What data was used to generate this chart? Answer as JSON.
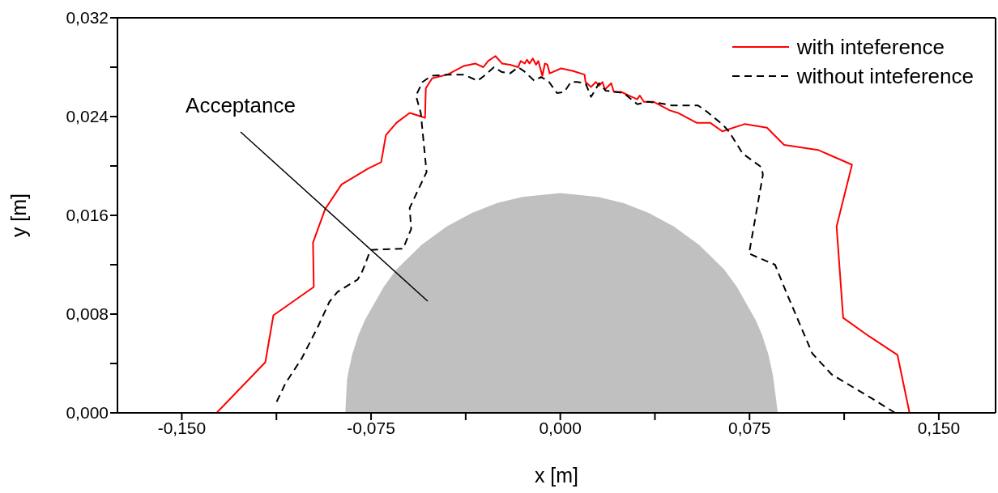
{
  "chart_data": {
    "type": "line",
    "xlabel": "x [m]",
    "ylabel": "y [m]",
    "xlim": [
      -0.1755,
      0.1725
    ],
    "ylim": [
      0,
      0.032
    ],
    "xticks": [
      {
        "value": -0.15,
        "label": "-0,150"
      },
      {
        "value": -0.1125,
        "label": null
      },
      {
        "value": -0.075,
        "label": "-0,075"
      },
      {
        "value": -0.0375,
        "label": null
      },
      {
        "value": 0,
        "label": "0,000"
      },
      {
        "value": 0.0375,
        "label": null
      },
      {
        "value": 0.075,
        "label": "0,075"
      },
      {
        "value": 0.1125,
        "label": null
      },
      {
        "value": 0.15,
        "label": "0,150"
      }
    ],
    "yticks": [
      {
        "value": 0,
        "label": "0,000"
      },
      {
        "value": 0.004,
        "label": null
      },
      {
        "value": 0.008,
        "label": "0,008"
      },
      {
        "value": 0.012,
        "label": null
      },
      {
        "value": 0.016,
        "label": "0,016"
      },
      {
        "value": 0.02,
        "label": null
      },
      {
        "value": 0.024,
        "label": "0,024"
      },
      {
        "value": 0.028,
        "label": null
      },
      {
        "value": 0.032,
        "label": "0,032"
      }
    ],
    "legend": "top right",
    "annotations": [
      "Acceptance"
    ],
    "series": [
      {
        "type": "area",
        "color": "#c0c0c0",
        "x": [
          -0.0852,
          -0.0845,
          -0.084,
          -0.0825,
          -0.08,
          -0.0775,
          -0.07,
          -0.065,
          -0.055,
          -0.045,
          -0.035,
          -0.025,
          -0.015,
          0,
          0.015,
          0.025,
          0.035,
          0.045,
          0.055,
          0.065,
          0.07,
          0.0775,
          0.08,
          0.0825,
          0.084,
          0.0845,
          0.0862
        ],
        "values": [
          0,
          0.0027,
          0.0033,
          0.0047,
          0.0063,
          0.0075,
          0.0102,
          0.0116,
          0.0136,
          0.0151,
          0.0162,
          0.017,
          0.0175,
          0.0178,
          0.0175,
          0.017,
          0.0162,
          0.0151,
          0.0136,
          0.0116,
          0.0102,
          0.0075,
          0.0063,
          0.0047,
          0.0033,
          0.0027,
          0
        ]
      },
      {
        "name": "with inteference",
        "color": "#ff0000",
        "line_style": "solid",
        "x": [
          -0.1362,
          -0.1169,
          -0.1137,
          -0.0977,
          -0.098,
          -0.0932,
          -0.0867,
          -0.0761,
          -0.071,
          -0.0691,
          -0.0649,
          -0.0597,
          -0.0536,
          -0.0533,
          -0.0508,
          -0.0447,
          -0.0382,
          -0.0337,
          -0.0305,
          -0.0286,
          -0.0257,
          -0.0231,
          -0.0199,
          -0.0167,
          -0.0157,
          -0.0141,
          -0.0132,
          -0.0122,
          -0.0109,
          -0.0096,
          -0.0087,
          -0.0071,
          -0.0061,
          -0.0051,
          -0.0042,
          0.0003,
          0.0048,
          0.0096,
          0.01,
          0.0122,
          0.0141,
          0.0154,
          0.0167,
          0.0177,
          0.0202,
          0.0212,
          0.0241,
          0.0283,
          0.0305,
          0.0315,
          0.0331,
          0.0369,
          0.0434,
          0.0466,
          0.054,
          0.0594,
          0.0642,
          0.0732,
          0.0819,
          0.0887,
          0.1021,
          0.1156,
          0.1095,
          0.1121,
          0.1224,
          0.1336,
          0.1384
        ],
        "values": [
          0,
          0.0041,
          0.0079,
          0.0102,
          0.0138,
          0.0165,
          0.0185,
          0.0198,
          0.0203,
          0.0225,
          0.0235,
          0.0243,
          0.0239,
          0.0263,
          0.0271,
          0.0274,
          0.0281,
          0.0283,
          0.028,
          0.0285,
          0.0289,
          0.0283,
          0.0282,
          0.028,
          0.0285,
          0.0283,
          0.0286,
          0.0283,
          0.0287,
          0.0282,
          0.0285,
          0.0273,
          0.0283,
          0.0282,
          0.0275,
          0.0279,
          0.0277,
          0.0274,
          0.0268,
          0.0264,
          0.0268,
          0.0265,
          0.0268,
          0.0262,
          0.0267,
          0.026,
          0.026,
          0.0256,
          0.0254,
          0.0257,
          0.0252,
          0.0252,
          0.0245,
          0.0243,
          0.0235,
          0.0235,
          0.0228,
          0.0234,
          0.0231,
          0.0217,
          0.0213,
          0.0201,
          0.0151,
          0.0077,
          0.0062,
          0.0047,
          0
        ]
      },
      {
        "name": "without inteference",
        "color": "#000000",
        "line_style": "dashed",
        "x": [
          -0.1124,
          -0.1089,
          -0.1025,
          -0.096,
          -0.0915,
          -0.0883,
          -0.0803,
          -0.0784,
          -0.0752,
          -0.0623,
          -0.0591,
          -0.0597,
          -0.053,
          -0.0553,
          -0.0572,
          -0.0546,
          -0.0511,
          -0.0447,
          -0.0382,
          -0.0328,
          -0.0302,
          -0.0263,
          -0.0231,
          -0.0199,
          -0.0167,
          -0.0145,
          -0.0103,
          -0.0077,
          -0.0048,
          -0.0013,
          0.0016,
          0.0042,
          0.0067,
          0.01,
          0.0122,
          0.0154,
          0.018,
          0.0218,
          0.0251,
          0.0305,
          0.0347,
          0.0389,
          0.0443,
          0.0508,
          0.0546,
          0.0581,
          0.0646,
          0.0668,
          0.0723,
          0.0797,
          0.0803,
          0.0748,
          0.0851,
          0.0903,
          0.0999,
          0.1076,
          0.1224,
          0.1327
        ],
        "values": [
          0.0009,
          0.0024,
          0.0044,
          0.007,
          0.009,
          0.0098,
          0.0108,
          0.0115,
          0.0132,
          0.0133,
          0.0149,
          0.0166,
          0.0195,
          0.0243,
          0.0257,
          0.0268,
          0.0273,
          0.0274,
          0.0274,
          0.0269,
          0.0273,
          0.028,
          0.0276,
          0.0275,
          0.028,
          0.0277,
          0.0269,
          0.0272,
          0.0269,
          0.0259,
          0.026,
          0.0268,
          0.0268,
          0.0267,
          0.0256,
          0.0267,
          0.0261,
          0.026,
          0.0259,
          0.025,
          0.0252,
          0.0251,
          0.0249,
          0.0249,
          0.0249,
          0.0244,
          0.0233,
          0.0228,
          0.021,
          0.0199,
          0.0193,
          0.0129,
          0.012,
          0.0094,
          0.0048,
          0.0031,
          0.0013,
          0
        ]
      }
    ]
  }
}
